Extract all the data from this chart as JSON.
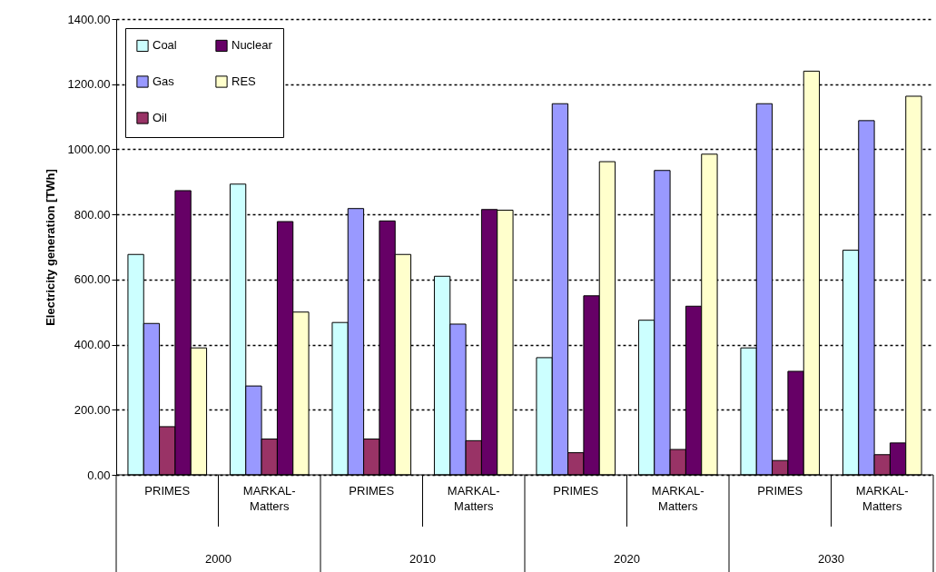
{
  "chart_data": {
    "type": "bar",
    "ylabel": "Electricity generation [TWh]",
    "categories": [
      "PRIMES",
      "MARKAL-Matters",
      "PRIMES",
      "MARKAL-Matters",
      "PRIMES",
      "MARKAL-Matters",
      "PRIMES",
      "MARKAL-Matters"
    ],
    "annotations": [
      "2000",
      "2010",
      "2020",
      "2030"
    ],
    "series": [
      {
        "name": "Coal",
        "color": "#ccffff",
        "values": [
          677,
          893,
          468,
          610,
          360,
          475,
          390,
          690
        ]
      },
      {
        "name": "Gas",
        "color": "#9999ff",
        "values": [
          465,
          273,
          818,
          463,
          1140,
          935,
          1140,
          1088
        ]
      },
      {
        "name": "Oil",
        "color": "#993366",
        "values": [
          148,
          110,
          110,
          105,
          68,
          78,
          44,
          62
        ]
      },
      {
        "name": "Nuclear",
        "color": "#660066",
        "values": [
          873,
          778,
          780,
          815,
          550,
          518,
          318,
          98
        ]
      },
      {
        "name": "RES",
        "color": "#ffffcc",
        "values": [
          390,
          500,
          677,
          813,
          962,
          985,
          1240,
          1163
        ]
      }
    ],
    "ylim": [
      0,
      1400
    ],
    "yticks": [
      {
        "value": 0,
        "label": "0.00"
      },
      {
        "value": 200,
        "label": "200.00"
      },
      {
        "value": 400,
        "label": "400.00"
      },
      {
        "value": 600,
        "label": "600.00"
      },
      {
        "value": 800,
        "label": "800.00"
      },
      {
        "value": 1000,
        "label": "1000.00"
      },
      {
        "value": 1200,
        "label": "1200.00"
      },
      {
        "value": 1400,
        "label": "1400.00"
      }
    ],
    "grid": "y",
    "legend": "top left"
  }
}
